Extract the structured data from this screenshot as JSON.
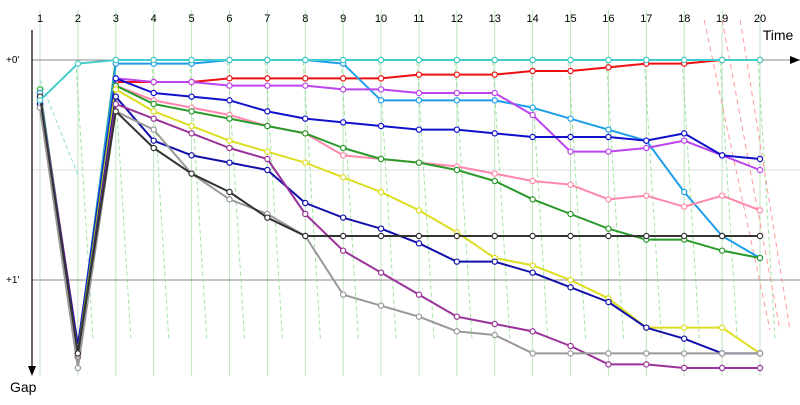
{
  "chart_data": {
    "type": "line",
    "title": "",
    "xlabel": "Time",
    "ylabel": "Gap",
    "x_categories": [
      "1",
      "2",
      "3",
      "4",
      "5",
      "6",
      "7",
      "8",
      "9",
      "10",
      "11",
      "12",
      "13",
      "14",
      "15",
      "16",
      "17",
      "18",
      "19",
      "20"
    ],
    "y_ticks": [
      {
        "label": "+0'",
        "value": 0
      },
      {
        "label": "+1'",
        "value": 60
      }
    ],
    "ylim": [
      -8,
      85
    ],
    "y_direction": "down",
    "grid": "vertical per lap, horizontal at +0' / +30s / +1'",
    "legend": "none",
    "series": [
      {
        "color": "#2db52d",
        "values": [
          8,
          80,
          0,
          0,
          0,
          0,
          0,
          0,
          0,
          0,
          0,
          0,
          0,
          0,
          0,
          0,
          0,
          0,
          0,
          0
        ]
      },
      {
        "color": "#ee1111",
        "values": [
          9,
          78,
          6,
          6,
          6,
          5,
          5,
          5,
          5,
          5,
          4,
          4,
          4,
          3,
          3,
          2,
          1,
          1,
          0,
          0
        ]
      },
      {
        "color": "#1e9ee8",
        "values": [
          9,
          79,
          1,
          1,
          1,
          0,
          0,
          0,
          1,
          11,
          11,
          11,
          11,
          13,
          16,
          19,
          22,
          36,
          48,
          54
        ]
      },
      {
        "color": "#bb44ee",
        "values": [
          10,
          79,
          5,
          6,
          6,
          7,
          7,
          7,
          8,
          8,
          9,
          9,
          9,
          15,
          25,
          25,
          24,
          22,
          26,
          30
        ]
      },
      {
        "color": "#1111cc",
        "values": [
          11,
          78,
          5,
          9,
          10,
          11,
          14,
          16,
          17,
          18,
          19,
          19,
          20,
          21,
          21,
          21,
          22,
          20,
          26,
          27
        ]
      },
      {
        "color": "#ff88aa",
        "values": [
          11,
          80,
          7,
          11,
          13,
          15,
          18,
          20,
          26,
          27,
          28,
          29,
          31,
          33,
          34,
          38,
          37,
          40,
          37,
          41
        ]
      },
      {
        "color": "#2a9a2a",
        "values": [
          12,
          80,
          7,
          12,
          14,
          16,
          18,
          20,
          24,
          27,
          28,
          30,
          33,
          38,
          42,
          46,
          49,
          49,
          52,
          54
        ]
      },
      {
        "color": "#dddd22",
        "values": [
          11,
          81,
          8,
          14,
          18,
          22,
          25,
          28,
          32,
          36,
          41,
          47,
          54,
          56,
          60,
          65,
          73,
          73,
          73,
          80
        ]
      },
      {
        "color": "#1111aa",
        "values": [
          12,
          81,
          10,
          22,
          26,
          28,
          30,
          39,
          43,
          46,
          50,
          55,
          55,
          58,
          62,
          66,
          73,
          76,
          80,
          80
        ]
      },
      {
        "color": "#993399",
        "values": [
          13,
          81,
          12,
          16,
          20,
          24,
          27,
          42,
          52,
          58,
          64,
          70,
          72,
          74,
          78,
          83,
          83,
          84,
          84,
          84
        ]
      },
      {
        "color": "#999999",
        "values": [
          13,
          84,
          14,
          19,
          31,
          38,
          42,
          48,
          64,
          67,
          70,
          74,
          75,
          80,
          80,
          80,
          80,
          80,
          80,
          80
        ]
      },
      {
        "color": "#333333",
        "values": [
          10,
          80,
          14,
          24,
          31,
          36,
          43,
          48,
          48,
          48,
          48,
          48,
          48,
          48,
          48,
          48,
          48,
          48,
          48,
          48
        ]
      },
      {
        "color": "#44cccc",
        "values": [
          11,
          1,
          0,
          0,
          0,
          0,
          0,
          0,
          0,
          0,
          0,
          0,
          0,
          0,
          0,
          0,
          0,
          0,
          0,
          0
        ]
      }
    ]
  }
}
